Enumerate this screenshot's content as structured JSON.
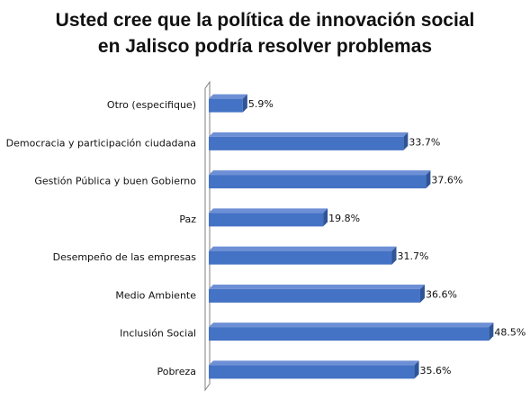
{
  "chart_data": {
    "type": "bar",
    "orientation": "horizontal",
    "style": "3d",
    "title_lines": [
      "Usted cree que la política de innovación social",
      "en Jalisco podría resolver problemas"
    ],
    "categories": [
      "Otro (especifique)",
      "Democracia y participación ciudadana",
      "Gestión Pública y buen Gobierno",
      "Paz",
      "Desempeño de las empresas",
      "Medio Ambiente",
      "Inclusión Social",
      "Pobreza"
    ],
    "values": [
      5.9,
      33.7,
      37.6,
      19.8,
      31.7,
      36.6,
      48.5,
      35.6
    ],
    "value_labels": [
      "5.9%",
      "33.7%",
      "37.6%",
      "19.8%",
      "31.7%",
      "36.6%",
      "48.5%",
      "35.6%"
    ],
    "unit": "%",
    "xlim": [
      0,
      50
    ],
    "grid": false,
    "legend": "none",
    "colors": {
      "bar_front": "#4472c4",
      "bar_top": "#6d8fd6",
      "bar_side": "#2f5597",
      "axis_wall": "#7f7f7f"
    }
  }
}
